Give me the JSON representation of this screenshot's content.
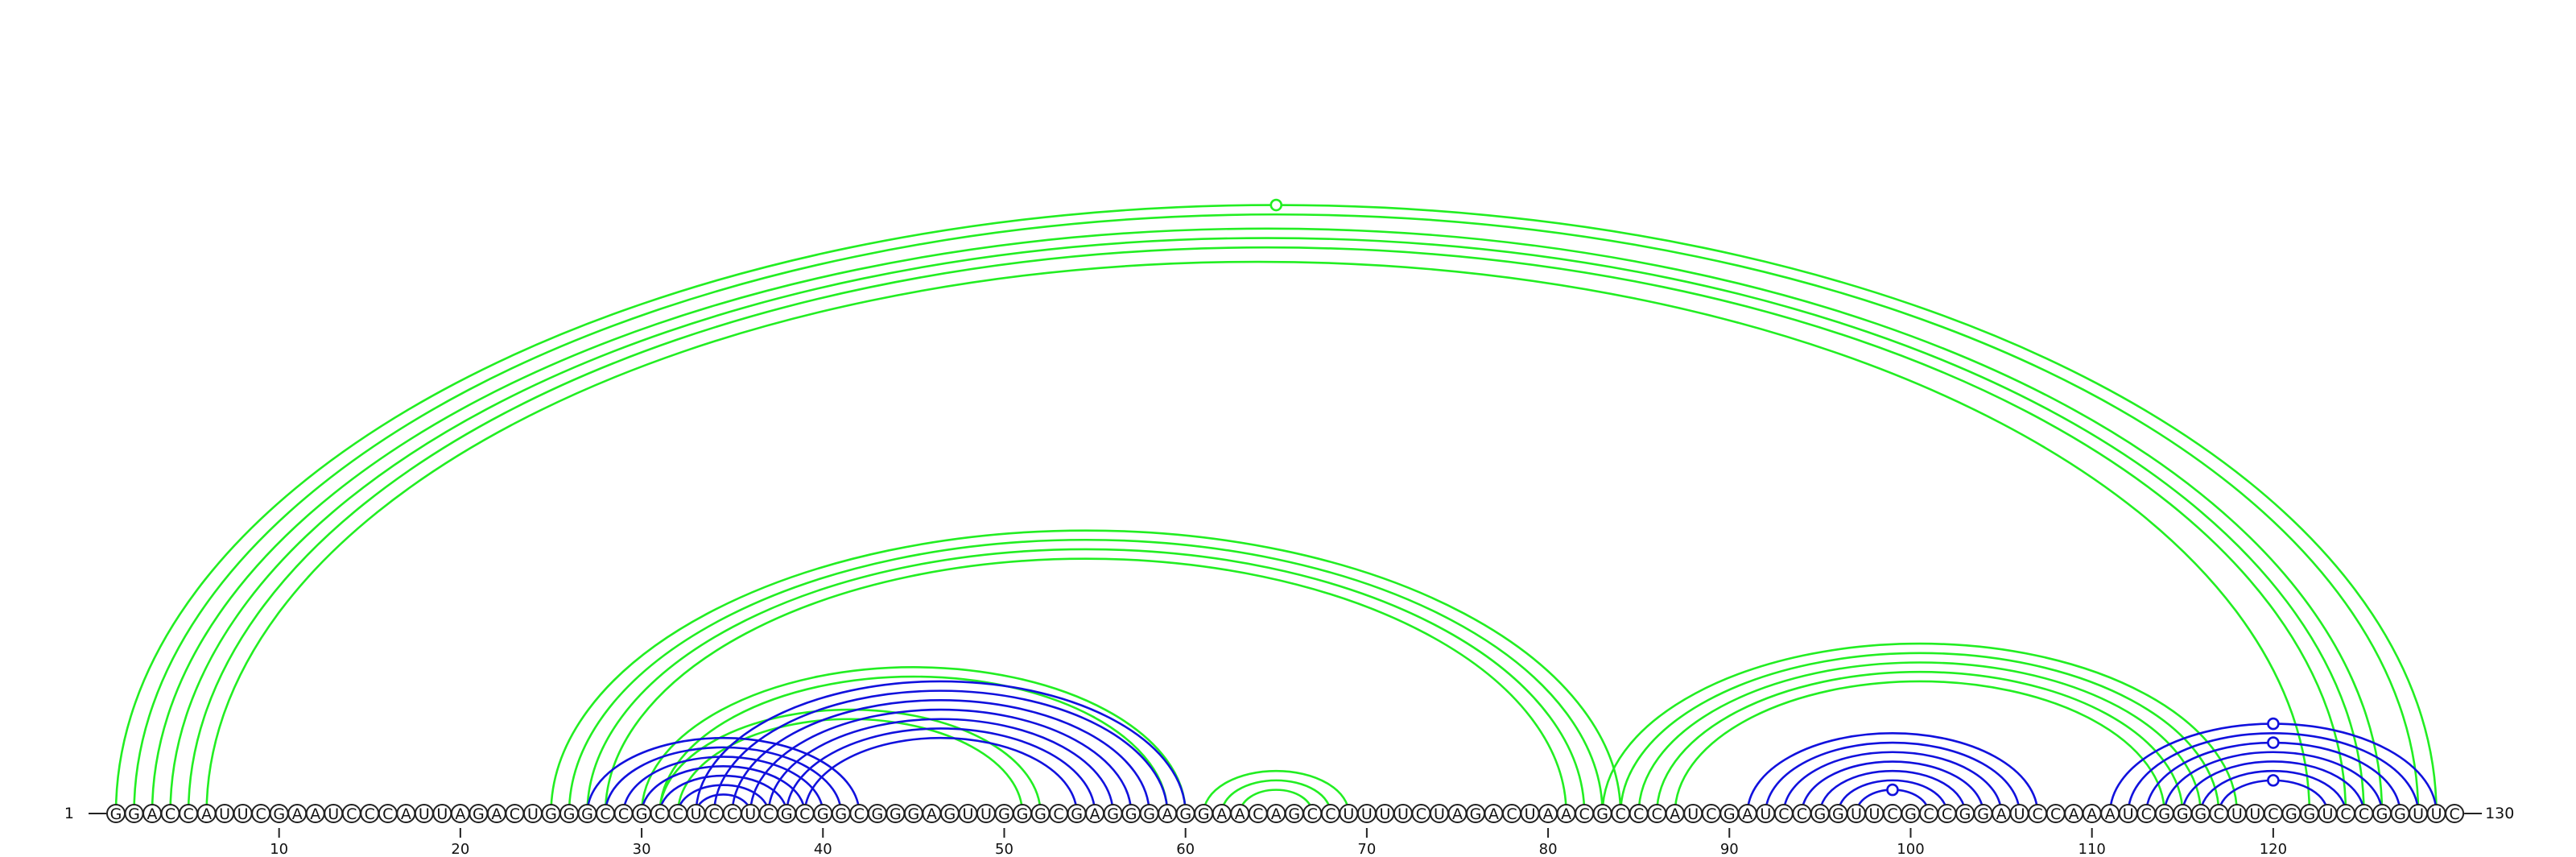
{
  "sequence": "GGACCAUUCGAAUCCCAUUAGACUGGGCCGCCUCCUCGCGGCGGGAGUUGGGCGAGGGAGGAACAGCCUUUUCUAGACUAACGCCCAUCGAUCCGGUUCGCCGGAUCCAAAUCGGGCUUCGGUCCGGUUC",
  "start_label": "1",
  "end_label": "130",
  "ticks": [
    10,
    20,
    30,
    40,
    50,
    60,
    70,
    80,
    90,
    100,
    110,
    120
  ],
  "colors": {
    "green": "#22ee22",
    "blue": "#1111dd",
    "line": "#222222"
  },
  "pair_sets": [
    {
      "color": "green",
      "pairs": [
        [
          1,
          129
        ],
        [
          2,
          128
        ],
        [
          3,
          126
        ],
        [
          4,
          125
        ],
        [
          5,
          124
        ],
        [
          6,
          122
        ],
        [
          25,
          84
        ],
        [
          26,
          83
        ],
        [
          27,
          82
        ],
        [
          28,
          81
        ],
        [
          30,
          60
        ],
        [
          31,
          59
        ],
        [
          31,
          52
        ],
        [
          32,
          51
        ],
        [
          61,
          69
        ],
        [
          62,
          68
        ],
        [
          63,
          67
        ],
        [
          83,
          118
        ],
        [
          84,
          117
        ],
        [
          85,
          116
        ],
        [
          86,
          115
        ],
        [
          87,
          114
        ]
      ],
      "markers": [
        [
          1,
          129
        ]
      ]
    },
    {
      "color": "blue",
      "pairs": [
        [
          27,
          42
        ],
        [
          28,
          41
        ],
        [
          29,
          40
        ],
        [
          30,
          39
        ],
        [
          31,
          38
        ],
        [
          32,
          37
        ],
        [
          33,
          36
        ],
        [
          33,
          60
        ],
        [
          34,
          59
        ],
        [
          35,
          58
        ],
        [
          36,
          57
        ],
        [
          37,
          56
        ],
        [
          38,
          55
        ],
        [
          39,
          54
        ],
        [
          91,
          107
        ],
        [
          92,
          106
        ],
        [
          93,
          105
        ],
        [
          94,
          104
        ],
        [
          95,
          103
        ],
        [
          96,
          102
        ],
        [
          97,
          101
        ],
        [
          111,
          129
        ],
        [
          112,
          128
        ],
        [
          113,
          127
        ],
        [
          114,
          126
        ],
        [
          115,
          125
        ],
        [
          116,
          124
        ],
        [
          117,
          123
        ]
      ],
      "markers": [
        [
          97,
          101
        ],
        [
          111,
          129
        ],
        [
          113,
          127
        ],
        [
          117,
          123
        ]
      ]
    }
  ]
}
